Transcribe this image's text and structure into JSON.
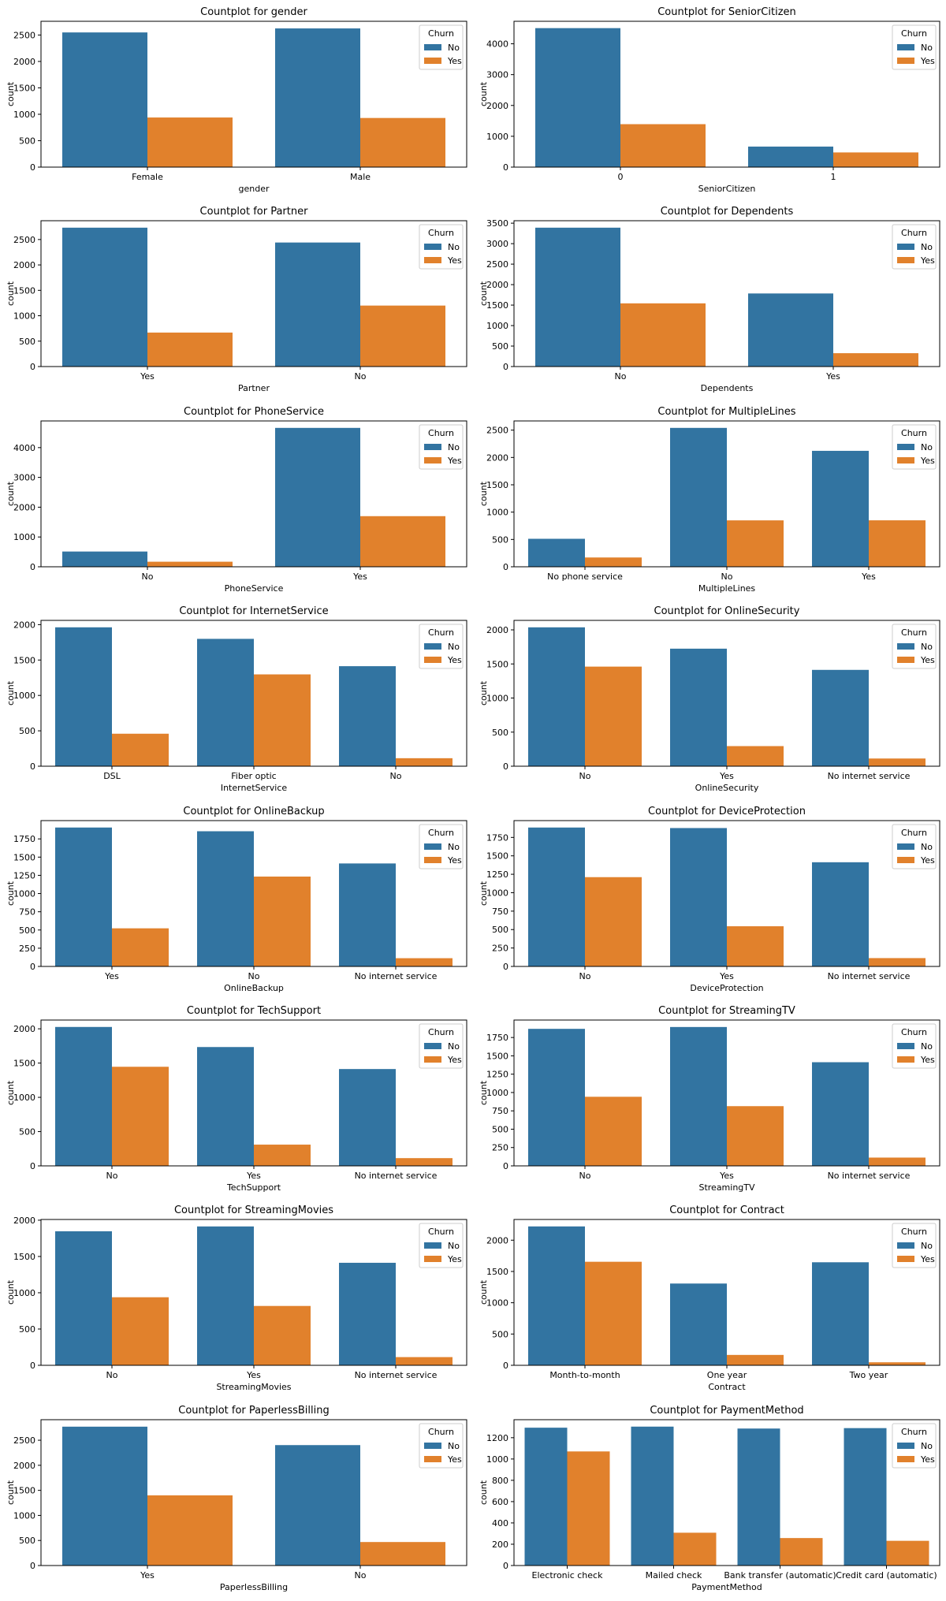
{
  "hue": {
    "title": "Churn",
    "levels": [
      "No",
      "Yes"
    ],
    "colors": {
      "No": "#3274a1",
      "Yes": "#e1812c"
    }
  },
  "chart_data": [
    {
      "type": "bar",
      "title": "Countplot for gender",
      "xlabel": "gender",
      "ylabel": "count",
      "categories": [
        "Female",
        "Male"
      ],
      "series": [
        {
          "name": "No",
          "values": [
            2549,
            2625
          ]
        },
        {
          "name": "Yes",
          "values": [
            939,
            930
          ]
        }
      ],
      "ylim": [
        0,
        2760
      ],
      "yticks": [
        0,
        500,
        1000,
        1500,
        2000,
        2500
      ],
      "legend": "top-right",
      "grid": false
    },
    {
      "type": "bar",
      "title": "Countplot for SeniorCitizen",
      "xlabel": "SeniorCitizen",
      "ylabel": "count",
      "categories": [
        "0",
        "1"
      ],
      "series": [
        {
          "name": "No",
          "values": [
            4508,
            666
          ]
        },
        {
          "name": "Yes",
          "values": [
            1393,
            476
          ]
        }
      ],
      "ylim": [
        0,
        4730
      ],
      "yticks": [
        0,
        1000,
        2000,
        3000,
        4000
      ],
      "legend": "top-right",
      "grid": false
    },
    {
      "type": "bar",
      "title": "Countplot for Partner",
      "xlabel": "Partner",
      "ylabel": "count",
      "categories": [
        "Yes",
        "No"
      ],
      "series": [
        {
          "name": "No",
          "values": [
            2733,
            2441
          ]
        },
        {
          "name": "Yes",
          "values": [
            669,
            1200
          ]
        }
      ],
      "ylim": [
        0,
        2870
      ],
      "yticks": [
        0,
        500,
        1000,
        1500,
        2000,
        2500
      ],
      "legend": "top-right",
      "grid": false
    },
    {
      "type": "bar",
      "title": "Countplot for Dependents",
      "xlabel": "Dependents",
      "ylabel": "count",
      "categories": [
        "No",
        "Yes"
      ],
      "series": [
        {
          "name": "No",
          "values": [
            3390,
            1784
          ]
        },
        {
          "name": "Yes",
          "values": [
            1543,
            326
          ]
        }
      ],
      "ylim": [
        0,
        3560
      ],
      "yticks": [
        0,
        500,
        1000,
        1500,
        2000,
        2500,
        3000,
        3500
      ],
      "legend": "top-right",
      "grid": false
    },
    {
      "type": "bar",
      "title": "Countplot for PhoneService",
      "xlabel": "PhoneService",
      "ylabel": "count",
      "categories": [
        "No",
        "Yes"
      ],
      "series": [
        {
          "name": "No",
          "values": [
            512,
            4662
          ]
        },
        {
          "name": "Yes",
          "values": [
            170,
            1699
          ]
        }
      ],
      "ylim": [
        0,
        4895
      ],
      "yticks": [
        0,
        1000,
        2000,
        3000,
        4000
      ],
      "legend": "top-right",
      "grid": false
    },
    {
      "type": "bar",
      "title": "Countplot for MultipleLines",
      "xlabel": "MultipleLines",
      "ylabel": "count",
      "categories": [
        "No phone service",
        "No",
        "Yes"
      ],
      "series": [
        {
          "name": "No",
          "values": [
            512,
            2541,
            2121
          ]
        },
        {
          "name": "Yes",
          "values": [
            170,
            849,
            850
          ]
        }
      ],
      "ylim": [
        0,
        2668
      ],
      "yticks": [
        0,
        500,
        1000,
        1500,
        2000,
        2500
      ],
      "legend": "top-right",
      "grid": false
    },
    {
      "type": "bar",
      "title": "Countplot for InternetService",
      "xlabel": "InternetService",
      "ylabel": "count",
      "categories": [
        "DSL",
        "Fiber optic",
        "No"
      ],
      "series": [
        {
          "name": "No",
          "values": [
            1962,
            1799,
            1413
          ]
        },
        {
          "name": "Yes",
          "values": [
            459,
            1297,
            113
          ]
        }
      ],
      "ylim": [
        0,
        2060
      ],
      "yticks": [
        0,
        500,
        1000,
        1500,
        2000
      ],
      "legend": "top-right",
      "grid": false
    },
    {
      "type": "bar",
      "title": "Countplot for OnlineSecurity",
      "xlabel": "OnlineSecurity",
      "ylabel": "count",
      "categories": [
        "No",
        "Yes",
        "No internet service"
      ],
      "series": [
        {
          "name": "No",
          "values": [
            2037,
            1724,
            1413
          ]
        },
        {
          "name": "Yes",
          "values": [
            1461,
            295,
            113
          ]
        }
      ],
      "ylim": [
        0,
        2139
      ],
      "yticks": [
        0,
        500,
        1000,
        1500,
        2000
      ],
      "legend": "top-right",
      "grid": false
    },
    {
      "type": "bar",
      "title": "Countplot for OnlineBackup",
      "xlabel": "OnlineBackup",
      "ylabel": "count",
      "categories": [
        "Yes",
        "No",
        "No internet service"
      ],
      "series": [
        {
          "name": "No",
          "values": [
            1906,
            1855,
            1413
          ]
        },
        {
          "name": "Yes",
          "values": [
            523,
            1233,
            113
          ]
        }
      ],
      "ylim": [
        0,
        2001
      ],
      "yticks": [
        0,
        250,
        500,
        750,
        1000,
        1250,
        1500,
        1750
      ],
      "legend": "top-right",
      "grid": false
    },
    {
      "type": "bar",
      "title": "Countplot for DeviceProtection",
      "xlabel": "DeviceProtection",
      "ylabel": "count",
      "categories": [
        "No",
        "Yes",
        "No internet service"
      ],
      "series": [
        {
          "name": "No",
          "values": [
            1884,
            1877,
            1413
          ]
        },
        {
          "name": "Yes",
          "values": [
            1211,
            545,
            113
          ]
        }
      ],
      "ylim": [
        0,
        1978
      ],
      "yticks": [
        0,
        250,
        500,
        750,
        1000,
        1250,
        1500,
        1750
      ],
      "legend": "top-right",
      "grid": false
    },
    {
      "type": "bar",
      "title": "Countplot for TechSupport",
      "xlabel": "TechSupport",
      "ylabel": "count",
      "categories": [
        "No",
        "Yes",
        "No internet service"
      ],
      "series": [
        {
          "name": "No",
          "values": [
            2027,
            1734,
            1413
          ]
        },
        {
          "name": "Yes",
          "values": [
            1446,
            310,
            113
          ]
        }
      ],
      "ylim": [
        0,
        2128
      ],
      "yticks": [
        0,
        500,
        1000,
        1500,
        2000
      ],
      "legend": "top-right",
      "grid": false
    },
    {
      "type": "bar",
      "title": "Countplot for StreamingTV",
      "xlabel": "StreamingTV",
      "ylabel": "count",
      "categories": [
        "No",
        "Yes",
        "No internet service"
      ],
      "series": [
        {
          "name": "No",
          "values": [
            1868,
            1893,
            1413
          ]
        },
        {
          "name": "Yes",
          "values": [
            942,
            814,
            113
          ]
        }
      ],
      "ylim": [
        0,
        1988
      ],
      "yticks": [
        0,
        250,
        500,
        750,
        1000,
        1250,
        1500,
        1750
      ],
      "legend": "top-right",
      "grid": false
    },
    {
      "type": "bar",
      "title": "Countplot for StreamingMovies",
      "xlabel": "StreamingMovies",
      "ylabel": "count",
      "categories": [
        "No",
        "Yes",
        "No internet service"
      ],
      "series": [
        {
          "name": "No",
          "values": [
            1847,
            1914,
            1413
          ]
        },
        {
          "name": "Yes",
          "values": [
            938,
            818,
            113
          ]
        }
      ],
      "ylim": [
        0,
        2010
      ],
      "yticks": [
        0,
        500,
        1000,
        1500,
        2000
      ],
      "legend": "top-right",
      "grid": false
    },
    {
      "type": "bar",
      "title": "Countplot for Contract",
      "xlabel": "Contract",
      "ylabel": "count",
      "categories": [
        "Month-to-month",
        "One year",
        "Two year"
      ],
      "series": [
        {
          "name": "No",
          "values": [
            2220,
            1307,
            1647
          ]
        },
        {
          "name": "Yes",
          "values": [
            1655,
            166,
            48
          ]
        }
      ],
      "ylim": [
        0,
        2331
      ],
      "yticks": [
        0,
        500,
        1000,
        1500,
        2000
      ],
      "legend": "top-right",
      "grid": false
    },
    {
      "type": "bar",
      "title": "Countplot for PaperlessBilling",
      "xlabel": "PaperlessBilling",
      "ylabel": "count",
      "categories": [
        "Yes",
        "No"
      ],
      "series": [
        {
          "name": "No",
          "values": [
            2771,
            2403
          ]
        },
        {
          "name": "Yes",
          "values": [
            1400,
            469
          ]
        }
      ],
      "ylim": [
        0,
        2910
      ],
      "yticks": [
        0,
        500,
        1000,
        1500,
        2000,
        2500
      ],
      "legend": "top-right",
      "grid": false
    },
    {
      "type": "bar",
      "title": "Countplot for PaymentMethod",
      "xlabel": "PaymentMethod",
      "ylabel": "count",
      "categories": [
        "Electronic check",
        "Mailed check",
        "Bank transfer (automatic)",
        "Credit card (automatic)"
      ],
      "series": [
        {
          "name": "No",
          "values": [
            1294,
            1304,
            1286,
            1290
          ]
        },
        {
          "name": "Yes",
          "values": [
            1071,
            308,
            258,
            232
          ]
        }
      ],
      "ylim": [
        0,
        1369
      ],
      "yticks": [
        0,
        200,
        400,
        600,
        800,
        1000,
        1200
      ],
      "legend": "top-right",
      "grid": false
    }
  ]
}
